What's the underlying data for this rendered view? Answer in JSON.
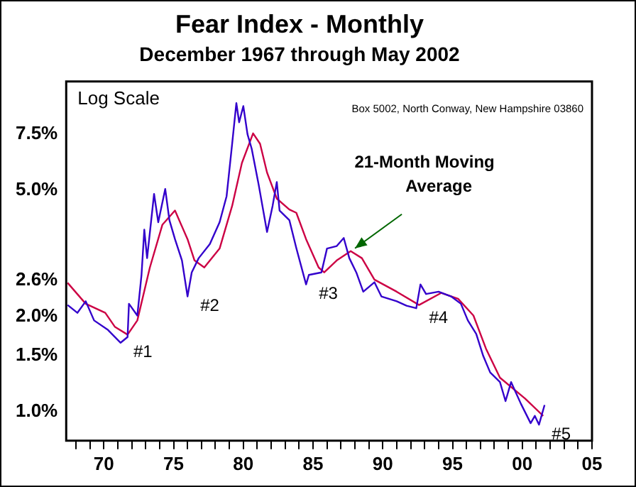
{
  "chart_data": {
    "type": "line",
    "title": "Fear Index - Monthly",
    "subtitle": "December 1967 through May 2002",
    "log": "y",
    "grid": false,
    "legend": false,
    "marker": "none",
    "line_style": "solid",
    "xlim": [
      1967.3,
      2005
    ],
    "xticks": [
      {
        "value": 1968,
        "label": null
      },
      {
        "value": 1969,
        "label": null
      },
      {
        "value": 1970,
        "label": "70"
      },
      {
        "value": 1971,
        "label": null
      },
      {
        "value": 1972,
        "label": null
      },
      {
        "value": 1973,
        "label": null
      },
      {
        "value": 1974,
        "label": null
      },
      {
        "value": 1975,
        "label": "75"
      },
      {
        "value": 1976,
        "label": null
      },
      {
        "value": 1977,
        "label": null
      },
      {
        "value": 1978,
        "label": null
      },
      {
        "value": 1979,
        "label": null
      },
      {
        "value": 1980,
        "label": "80"
      },
      {
        "value": 1981,
        "label": null
      },
      {
        "value": 1982,
        "label": null
      },
      {
        "value": 1983,
        "label": null
      },
      {
        "value": 1984,
        "label": null
      },
      {
        "value": 1985,
        "label": "85"
      },
      {
        "value": 1986,
        "label": null
      },
      {
        "value": 1987,
        "label": null
      },
      {
        "value": 1988,
        "label": null
      },
      {
        "value": 1989,
        "label": null
      },
      {
        "value": 1990,
        "label": "90"
      },
      {
        "value": 1991,
        "label": null
      },
      {
        "value": 1992,
        "label": null
      },
      {
        "value": 1993,
        "label": null
      },
      {
        "value": 1994,
        "label": null
      },
      {
        "value": 1995,
        "label": "95"
      },
      {
        "value": 1996,
        "label": null
      },
      {
        "value": 1997,
        "label": null
      },
      {
        "value": 1998,
        "label": null
      },
      {
        "value": 1999,
        "label": null
      },
      {
        "value": 2000,
        "label": "00"
      },
      {
        "value": 2001,
        "label": null
      },
      {
        "value": 2002,
        "label": null
      },
      {
        "value": 2003,
        "label": null
      },
      {
        "value": 2004,
        "label": null
      },
      {
        "value": 2005,
        "label": "05"
      }
    ],
    "ylim": [
      0.81,
      11
    ],
    "yticks": [
      {
        "value": 1,
        "label": "1.0%"
      },
      {
        "value": 1.5,
        "label": "1.5%"
      },
      {
        "value": 2,
        "label": "2.0%"
      },
      {
        "value": 2.6,
        "label": "2.6%"
      },
      {
        "value": 5,
        "label": "5.0%"
      },
      {
        "value": 7.5,
        "label": "7.5%"
      }
    ],
    "series": [
      {
        "color": "#3300cc",
        "x": [
          1967.4,
          1968.1,
          1968.7,
          1969.3,
          1970.3,
          1971.2,
          1971.7,
          1971.8,
          1972.4,
          1972.7,
          1972.9,
          1973.1,
          1973.6,
          1973.9,
          1974.4,
          1974.7,
          1975.1,
          1975.6,
          1976.0,
          1976.3,
          1976.8,
          1977.6,
          1978.3,
          1978.8,
          1979.2,
          1979.5,
          1979.7,
          1980.0,
          1980.3,
          1980.6,
          1981.1,
          1981.7,
          1982.1,
          1982.4,
          1982.6,
          1983.3,
          1983.8,
          1984.5,
          1984.7,
          1985.6,
          1986.0,
          1986.7,
          1987.2,
          1987.6,
          1988.1,
          1988.6,
          1989.4,
          1989.9,
          1991.0,
          1991.7,
          1992.4,
          1992.7,
          1993.1,
          1994.0,
          1994.9,
          1995.6,
          1996.1,
          1996.7,
          1997.2,
          1997.7,
          1998.4,
          1998.8,
          1999.2,
          1999.9,
          2000.6,
          2000.9,
          2001.2,
          2001.6
        ],
        "values": [
          2.17,
          2.05,
          2.23,
          1.94,
          1.81,
          1.65,
          1.72,
          2.19,
          2.01,
          2.7,
          3.75,
          3.05,
          4.86,
          3.96,
          5.04,
          4.02,
          3.5,
          3.0,
          2.31,
          2.75,
          3.05,
          3.38,
          3.96,
          4.78,
          7.0,
          9.4,
          8.18,
          9.2,
          7.5,
          6.75,
          5.2,
          3.69,
          4.46,
          5.3,
          4.31,
          4.02,
          3.28,
          2.52,
          2.7,
          2.75,
          3.27,
          3.33,
          3.53,
          3.05,
          2.75,
          2.39,
          2.56,
          2.31,
          2.23,
          2.16,
          2.12,
          2.52,
          2.35,
          2.39,
          2.31,
          2.19,
          1.94,
          1.76,
          1.5,
          1.33,
          1.24,
          1.08,
          1.24,
          1.06,
          0.92,
          0.97,
          0.91,
          1.05
        ]
      },
      {
        "color": "#cc0044",
        "x": [
          1967.4,
          1968.7,
          1970.1,
          1970.8,
          1971.7,
          1972.4,
          1973.3,
          1974.2,
          1975.1,
          1976.0,
          1976.5,
          1977.2,
          1978.3,
          1979.2,
          1979.9,
          1980.7,
          1981.2,
          1981.7,
          1982.4,
          1983.3,
          1983.8,
          1984.5,
          1985.4,
          1985.8,
          1986.7,
          1987.7,
          1988.5,
          1989.4,
          1991.0,
          1992.6,
          1994.2,
          1995.4,
          1996.5,
          1997.4,
          1998.4,
          2000.2,
          2001.5
        ],
        "values": [
          2.55,
          2.19,
          2.05,
          1.85,
          1.75,
          1.94,
          2.85,
          3.89,
          4.31,
          3.5,
          3.0,
          2.85,
          3.27,
          4.46,
          6.09,
          7.55,
          7.0,
          5.68,
          4.7,
          4.34,
          4.24,
          3.5,
          2.85,
          2.75,
          3.0,
          3.21,
          3.05,
          2.61,
          2.39,
          2.17,
          2.37,
          2.27,
          2.01,
          1.58,
          1.28,
          1.1,
          0.97
        ]
      }
    ],
    "annotations": [
      "Log Scale",
      "Box 5002, North Conway, New Hampshire 03860",
      {
        "text": "#1",
        "x": 1971.2,
        "y": 1.65
      },
      {
        "text": "#2",
        "x": 1976.0,
        "y": 2.31
      },
      {
        "text": "#3",
        "x": 1984.5,
        "y": 2.52
      },
      {
        "text": "#4",
        "x": 1992.4,
        "y": 2.12
      },
      {
        "text": "#5",
        "x": 2001.2,
        "y": 0.91
      },
      {
        "text": "21-Month Moving Average",
        "x": 1987.7,
        "y": 3.21
      }
    ]
  }
}
